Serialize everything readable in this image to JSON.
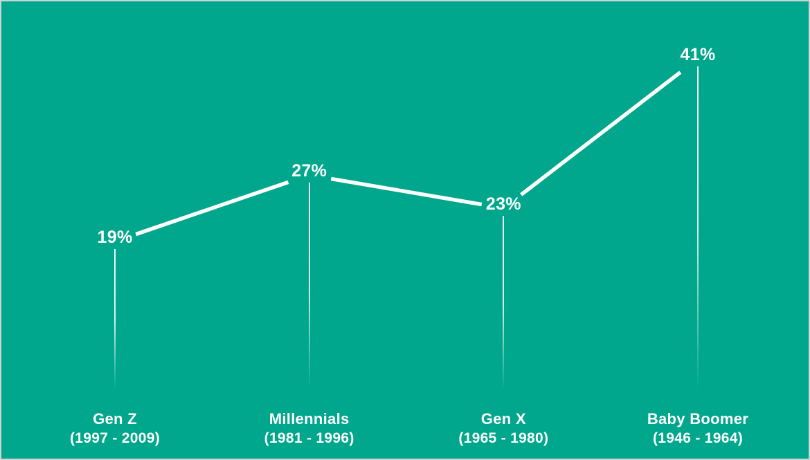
{
  "chart_data": {
    "type": "line",
    "title": "",
    "unit": "%",
    "categories": [
      "Gen Z",
      "Millennials",
      "Gen X",
      "Baby Boomer"
    ],
    "category_sublabels": [
      "(1997 - 2009)",
      "(1981 - 1996)",
      "(1965 - 1980)",
      "(1946 - 1964)"
    ],
    "values": [
      19,
      27,
      23,
      41
    ],
    "value_labels": [
      "19%",
      "27%",
      "23%",
      "41%"
    ],
    "ylim": [
      0,
      50
    ],
    "grid": false,
    "legend": "none",
    "style_notes": {
      "point_markers": "none; percentage label sits at each vertex with a gap in the line",
      "drop_lines": "thin vertical white lines fading out toward the bottom"
    },
    "colors": {
      "background": "#00a78c",
      "line": "#ffffff",
      "text": "#ffffff",
      "frame_border": "#ccd5d3"
    }
  }
}
